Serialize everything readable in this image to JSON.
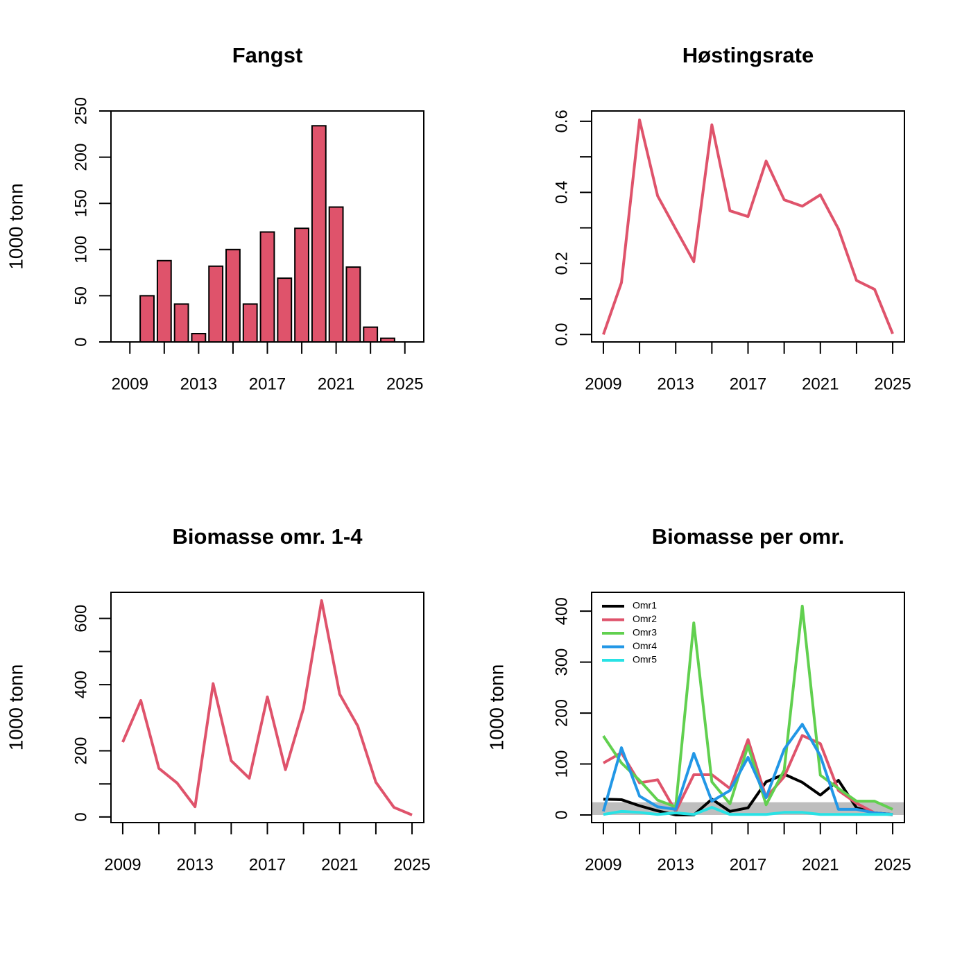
{
  "chart_data": [
    {
      "type": "bar",
      "title": "Fangst",
      "ylabel": "1000 tonn",
      "color": "#DF536B",
      "x": [
        2010,
        2011,
        2012,
        2013,
        2014,
        2015,
        2016,
        2017,
        2018,
        2019,
        2020,
        2021,
        2022,
        2023,
        2024
      ],
      "values": [
        50,
        88,
        41,
        9,
        82,
        100,
        41,
        119,
        69,
        123,
        234,
        146,
        81,
        16,
        4
      ],
      "xlim": [
        2007.9,
        2026.1
      ],
      "ylim": [
        0,
        250
      ],
      "xticks": [
        2009,
        2013,
        2017,
        2021,
        2025
      ],
      "xticks_unlabeled": [
        2011,
        2015,
        2019,
        2023
      ],
      "yticks": [
        0,
        50,
        100,
        150,
        200,
        250
      ]
    },
    {
      "type": "line",
      "title": "Høstingsrate",
      "color": "#DF536B",
      "x": [
        2009,
        2010,
        2011,
        2012,
        2013,
        2014,
        2015,
        2016,
        2017,
        2018,
        2019,
        2020,
        2021,
        2022,
        2023,
        2024,
        2025
      ],
      "values": [
        0,
        0.146,
        0.604,
        0.39,
        0.297,
        0.205,
        0.59,
        0.348,
        0.332,
        0.488,
        0.379,
        0.361,
        0.393,
        0.297,
        0.152,
        0.127,
        0.002
      ],
      "xlim": [
        2008.35,
        2025.65
      ],
      "ylim": [
        -0.021,
        0.629
      ],
      "xticks": [
        2009,
        2013,
        2017,
        2021,
        2025
      ],
      "xticks_unlabeled": [
        2011,
        2015,
        2019,
        2023
      ],
      "yticks": [
        {
          "value": 0,
          "label": "0.0"
        },
        0.2,
        0.4,
        0.6
      ],
      "yticks_unlabeled": [
        0.1,
        0.3,
        0.5
      ]
    },
    {
      "type": "line",
      "title": "Biomasse omr. 1-4",
      "ylabel": "1000 tonn",
      "color": "#DF536B",
      "x": [
        2009,
        2010,
        2011,
        2012,
        2013,
        2014,
        2015,
        2016,
        2017,
        2018,
        2019,
        2020,
        2021,
        2022,
        2023,
        2024,
        2025
      ],
      "values": [
        226,
        352,
        147,
        103,
        31,
        403,
        170,
        117,
        363,
        143,
        329,
        654,
        371,
        275,
        105,
        29,
        6
      ],
      "xlim": [
        2008.35,
        2025.65
      ],
      "ylim": [
        -17,
        679
      ],
      "xticks": [
        2009,
        2013,
        2017,
        2021,
        2025
      ],
      "xticks_unlabeled": [
        2011,
        2015,
        2019,
        2023
      ],
      "yticks": [
        0,
        200,
        400,
        600
      ],
      "yticks_unlabeled": [
        100,
        300,
        500
      ]
    },
    {
      "type": "line",
      "title": "Biomasse per omr.",
      "ylabel": "1000 tonn",
      "legend": "topleft",
      "band": [
        0,
        25
      ],
      "band_color": "#bebebe",
      "x": [
        2009,
        2010,
        2011,
        2012,
        2013,
        2014,
        2015,
        2016,
        2017,
        2018,
        2019,
        2020,
        2021,
        2022,
        2023,
        2024,
        2025
      ],
      "series": [
        {
          "name": "Omr1",
          "color": "#000000",
          "values": [
            31,
            30,
            18,
            8,
            0,
            0,
            31,
            7,
            14,
            65,
            80,
            64,
            39,
            68,
            14,
            4,
            1
          ]
        },
        {
          "name": "Omr2",
          "color": "#DF536B",
          "values": [
            102,
            122,
            63,
            69,
            7,
            79,
            79,
            52,
            148,
            34,
            75,
            156,
            140,
            48,
            23,
            4,
            0
          ]
        },
        {
          "name": "Omr3",
          "color": "#61D04F",
          "values": [
            155,
            102,
            68,
            29,
            16,
            377,
            65,
            22,
            136,
            20,
            88,
            410,
            78,
            52,
            27,
            27,
            11
          ]
        },
        {
          "name": "Omr4",
          "color": "#2297E6",
          "values": [
            7,
            132,
            37,
            16,
            11,
            121,
            27,
            48,
            113,
            34,
            129,
            178,
            116,
            11,
            11,
            4,
            1
          ]
        },
        {
          "name": "Omr5",
          "color": "#28E2E5",
          "values": [
            1,
            7,
            5,
            1,
            4,
            1,
            15,
            1,
            1,
            1,
            5,
            5,
            1,
            1,
            1,
            1,
            1
          ]
        }
      ],
      "xlim": [
        2008.35,
        2025.65
      ],
      "ylim": [
        -15,
        437
      ],
      "xticks": [
        2009,
        2013,
        2017,
        2021,
        2025
      ],
      "xticks_unlabeled": [
        2011,
        2015,
        2019,
        2023
      ],
      "yticks": [
        0,
        100,
        200,
        300,
        400
      ]
    }
  ]
}
